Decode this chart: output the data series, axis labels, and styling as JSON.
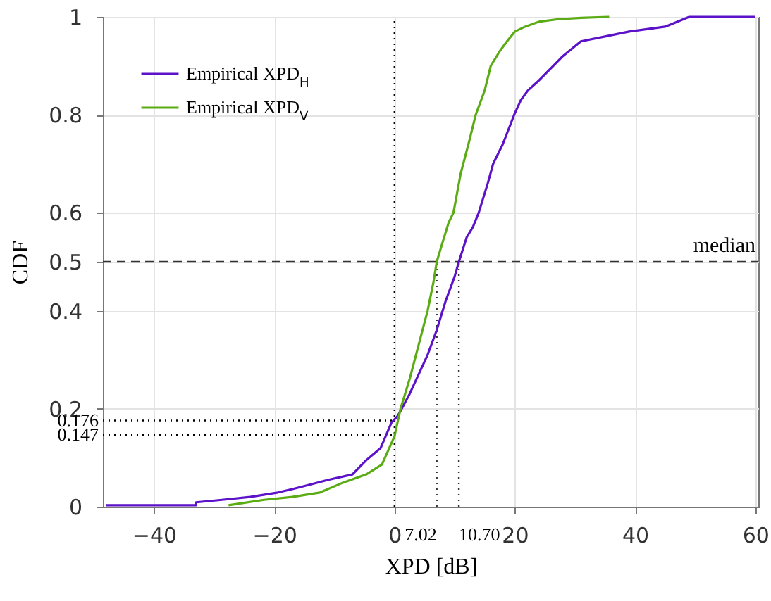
{
  "chart_data": {
    "type": "line",
    "xlabel": "XPD [dB]",
    "ylabel": "CDF",
    "xlim": [
      -48.5,
      60.5
    ],
    "xticks": [
      -40,
      -20,
      0,
      20,
      40,
      60
    ],
    "ylim": [
      0,
      1
    ],
    "yticks": [
      0,
      0.2,
      0.4,
      0.5,
      0.6,
      0.8,
      1
    ],
    "grid": true,
    "legend": "top left",
    "series": [
      {
        "name": "Empirical XPD$_{H}$",
        "color": "#5b12c8",
        "x": [
          -48,
          -33,
          -33,
          -28.7,
          -24,
          -19.4,
          -17,
          -14.7,
          -11,
          -7,
          -4.7,
          -2.3,
          -0.5,
          0.5,
          1.2,
          2.5,
          4,
          5.5,
          7,
          8.5,
          10,
          10.7,
          12,
          13,
          14,
          15.5,
          16.4,
          18,
          19.9,
          21,
          22.2,
          24,
          26.4,
          28,
          31,
          35,
          39,
          45,
          49,
          60
        ],
        "values": [
          0.003,
          0.003,
          0.009,
          0.014,
          0.02,
          0.029,
          0.036,
          0.043,
          0.055,
          0.066,
          0.095,
          0.12,
          0.172,
          0.185,
          0.2,
          0.23,
          0.27,
          0.31,
          0.36,
          0.42,
          0.47,
          0.5,
          0.55,
          0.57,
          0.6,
          0.66,
          0.7,
          0.74,
          0.8,
          0.83,
          0.85,
          0.87,
          0.9,
          0.92,
          0.95,
          0.96,
          0.97,
          0.98,
          1,
          1
        ]
      },
      {
        "name": "Empirical XPD$_{V}$",
        "color": "#5aab14",
        "x": [
          -27.6,
          -21.7,
          -17,
          -12.4,
          -8.6,
          -4.7,
          -2.1,
          0,
          1,
          2.5,
          4,
          5.5,
          6.5,
          7.02,
          8,
          9,
          9.8,
          11,
          12.5,
          13.5,
          15,
          16,
          17.5,
          18.7,
          20,
          21.7,
          24,
          27,
          31,
          35.7
        ],
        "values": [
          0.003,
          0.014,
          0.02,
          0.029,
          0.049,
          0.066,
          0.086,
          0.144,
          0.2,
          0.26,
          0.33,
          0.4,
          0.46,
          0.5,
          0.54,
          0.58,
          0.6,
          0.68,
          0.75,
          0.8,
          0.85,
          0.9,
          0.93,
          0.95,
          0.97,
          0.98,
          0.99,
          0.995,
          0.998,
          1
        ]
      }
    ],
    "ref_lines": [
      {
        "axis": "y",
        "value": 0.5,
        "label": "median",
        "color": "#333333",
        "line_style": "dashed"
      },
      {
        "axis": "x",
        "value": 0,
        "color": "#000000",
        "line_style": "dotted"
      },
      {
        "axis": "x",
        "value": 7.02,
        "label": "7.02",
        "color": "#333333",
        "line_style": "dotted"
      },
      {
        "axis": "x",
        "value": 10.7,
        "label": "10.70",
        "color": "#333333",
        "line_style": "dotted"
      },
      {
        "axis": "y",
        "value": 0.176,
        "label": "0.176",
        "color": "#000000",
        "line_style": "dotted"
      },
      {
        "axis": "y",
        "value": 0.147,
        "label": "0.147",
        "color": "#000000",
        "line_style": "dotted"
      }
    ]
  }
}
